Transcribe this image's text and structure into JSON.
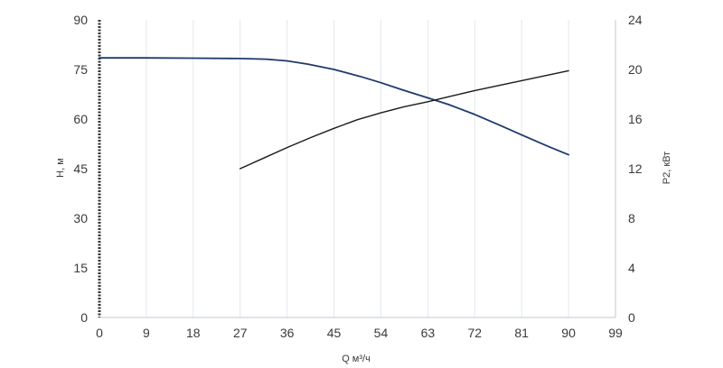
{
  "chart_data": {
    "type": "line",
    "xlabel": "Q м³/ч",
    "ylabel_left": "H, м",
    "ylabel_right": "P2, кВт",
    "x_ticks": [
      0,
      9,
      18,
      27,
      36,
      45,
      54,
      63,
      72,
      81,
      90,
      99
    ],
    "y_left_ticks": [
      0,
      15,
      30,
      45,
      60,
      75,
      90
    ],
    "y_right_ticks": [
      0,
      4,
      8,
      12,
      16,
      20,
      24
    ],
    "xlim": [
      0,
      99
    ],
    "ylim_left": [
      0,
      90
    ],
    "ylim_right": [
      0,
      24
    ],
    "grid": "vertical",
    "series": [
      {
        "axis": "left",
        "color": "#1f3a6e",
        "x": [
          0,
          9,
          18,
          27,
          32,
          36,
          40,
          45,
          50,
          54,
          58,
          63,
          67,
          72,
          77,
          81,
          86,
          90
        ],
        "values": [
          78.5,
          78.5,
          78.4,
          78.3,
          78.1,
          77.6,
          76.6,
          75.0,
          72.9,
          71.0,
          68.9,
          66.4,
          64.4,
          61.4,
          58.0,
          55.2,
          51.8,
          49.2
        ]
      },
      {
        "axis": "right",
        "color": "#1a1a1a",
        "x": [
          27,
          31.5,
          36,
          40.5,
          45,
          49.5,
          54,
          58.5,
          63,
          67.5,
          72,
          76.5,
          81,
          85.5,
          90
        ],
        "values": [
          12.0,
          12.85,
          13.7,
          14.5,
          15.25,
          15.95,
          16.5,
          17.0,
          17.4,
          17.85,
          18.3,
          18.7,
          19.1,
          19.5,
          19.9
        ]
      }
    ]
  }
}
